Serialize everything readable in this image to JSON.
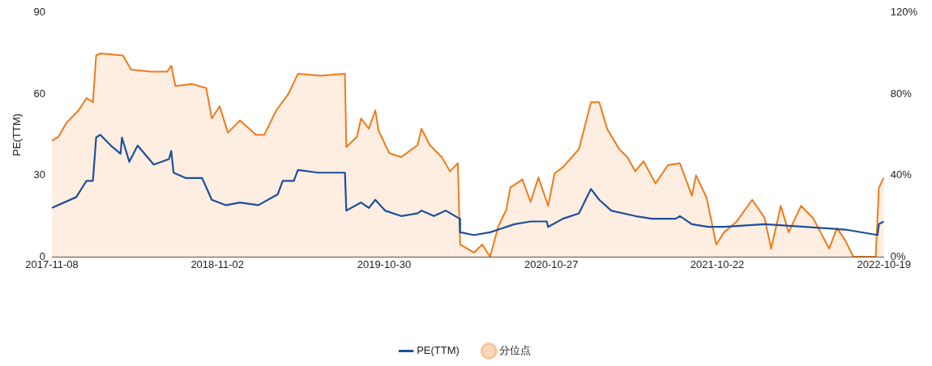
{
  "chart_data": {
    "type": "line",
    "ylabel": "PE(TTM)",
    "xlim": [
      "2017-11-08",
      "2022-10-19"
    ],
    "xticks": [
      "2017-11-08",
      "2018-11-02",
      "2019-10-30",
      "2020-10-27",
      "2021-10-22",
      "2022-10-19"
    ],
    "ylim": [
      0,
      90
    ],
    "yticks": [
      0,
      30,
      60,
      90
    ],
    "y2lim": [
      0,
      120
    ],
    "y2ticks": [
      {
        "value": 0,
        "label": "0%"
      },
      {
        "value": 40,
        "label": "40%"
      },
      {
        "value": 80,
        "label": "80%"
      },
      {
        "value": 120,
        "label": "120%"
      }
    ],
    "legend": "bottom",
    "marker": "none",
    "grid": false,
    "series": [
      {
        "name": "PE(TTM)",
        "type": "line",
        "color": "#1f4e9c",
        "x": [
          "2017-11-08",
          "2017-12-31",
          "2018-01-22",
          "2018-02-05",
          "2018-02-12",
          "2018-02-21",
          "2018-03-16",
          "2018-04-06",
          "2018-04-09",
          "2018-04-25",
          "2018-05-13",
          "2018-06-17",
          "2018-07-20",
          "2018-07-25",
          "2018-07-30",
          "2018-08-26",
          "2018-09-30",
          "2018-10-21",
          "2018-11-21",
          "2018-12-21",
          "2019-01-30",
          "2019-03-13",
          "2019-03-24",
          "2019-04-17",
          "2019-04-26",
          "2019-06-09",
          "2019-08-06",
          "2019-08-09",
          "2019-09-10",
          "2019-09-27",
          "2019-10-11",
          "2019-11-01",
          "2019-12-06",
          "2020-01-11",
          "2020-01-19",
          "2020-02-15",
          "2020-03-12",
          "2020-04-11",
          "2020-04-12",
          "2020-05-12",
          "2020-06-16",
          "2020-07-04",
          "2020-08-08",
          "2020-09-12",
          "2020-10-17",
          "2020-10-20",
          "2020-11-21",
          "2020-12-26",
          "2021-01-21",
          "2021-02-08",
          "2021-03-06",
          "2021-04-27",
          "2021-06-02",
          "2021-07-24",
          "2021-08-02",
          "2021-08-28",
          "2021-10-02",
          "2021-11-06",
          "2022-02-02",
          "2022-04-30",
          "2022-07-27",
          "2022-10-05",
          "2022-10-08",
          "2022-10-19"
        ],
        "values": [
          18,
          22,
          28,
          28,
          44,
          45,
          41,
          38,
          44,
          35,
          41,
          34,
          36,
          39,
          31,
          29,
          29,
          21,
          19,
          20,
          19,
          23,
          28,
          28,
          32,
          31,
          31,
          17,
          20,
          18,
          21,
          17,
          15,
          16,
          17,
          15,
          17,
          14,
          9,
          8,
          9,
          10,
          12,
          13,
          13,
          11,
          14,
          16,
          25,
          21,
          17,
          15,
          14,
          14,
          15,
          12,
          11,
          11,
          12,
          11,
          10,
          8,
          12,
          13
        ]
      },
      {
        "name": "分位点",
        "type": "area",
        "axis": "y2",
        "color": "#f07a1a",
        "x": [
          "2017-11-08",
          "2017-11-22",
          "2017-12-10",
          "2018-01-05",
          "2018-01-22",
          "2018-02-05",
          "2018-02-12",
          "2018-02-21",
          "2018-04-11",
          "2018-04-29",
          "2018-06-11",
          "2018-07-16",
          "2018-07-25",
          "2018-08-03",
          "2018-09-07",
          "2018-10-09",
          "2018-10-21",
          "2018-11-07",
          "2018-11-25",
          "2018-12-21",
          "2019-01-25",
          "2019-02-12",
          "2019-03-10",
          "2019-04-05",
          "2019-04-26",
          "2019-06-14",
          "2019-08-06",
          "2019-08-09",
          "2019-09-01",
          "2019-09-10",
          "2019-09-27",
          "2019-10-11",
          "2019-10-18",
          "2019-11-10",
          "2019-12-06",
          "2020-01-11",
          "2020-01-19",
          "2020-02-06",
          "2020-03-03",
          "2020-03-21",
          "2020-04-07",
          "2020-04-12",
          "2020-05-12",
          "2020-05-30",
          "2020-06-16",
          "2020-07-04",
          "2020-07-21",
          "2020-07-30",
          "2020-08-25",
          "2020-09-12",
          "2020-09-29",
          "2020-10-20",
          "2020-11-03",
          "2020-11-21",
          "2020-12-26",
          "2021-01-21",
          "2021-02-08",
          "2021-02-25",
          "2021-03-23",
          "2021-04-10",
          "2021-04-27",
          "2021-05-15",
          "2021-06-10",
          "2021-07-07",
          "2021-08-02",
          "2021-08-28",
          "2021-09-06",
          "2021-09-29",
          "2021-10-20",
          "2021-11-06",
          "2021-12-02",
          "2022-01-06",
          "2022-02-02",
          "2022-02-16",
          "2022-03-09",
          "2022-03-26",
          "2022-04-22",
          "2022-05-18",
          "2022-06-22",
          "2022-07-09",
          "2022-07-27",
          "2022-08-13",
          "2022-10-01",
          "2022-10-08",
          "2022-10-19"
        ],
        "values": [
          57,
          59,
          66,
          72,
          78,
          76,
          99,
          100,
          99,
          92,
          91,
          91,
          94,
          84,
          85,
          83,
          68,
          74,
          61,
          67,
          60,
          60,
          72,
          80,
          90,
          89,
          90,
          54,
          59,
          68,
          63,
          72,
          62,
          51,
          49,
          55,
          63,
          55,
          49,
          42,
          46,
          6,
          2,
          6,
          0,
          15,
          23,
          34,
          38,
          27,
          39,
          25,
          41,
          44,
          53,
          76,
          76,
          63,
          53,
          49,
          42,
          47,
          36,
          45,
          46,
          30,
          40,
          29,
          6,
          12,
          17,
          28,
          19,
          4,
          25,
          12,
          25,
          19,
          4,
          14,
          8,
          0,
          0,
          34,
          39
        ]
      }
    ]
  }
}
